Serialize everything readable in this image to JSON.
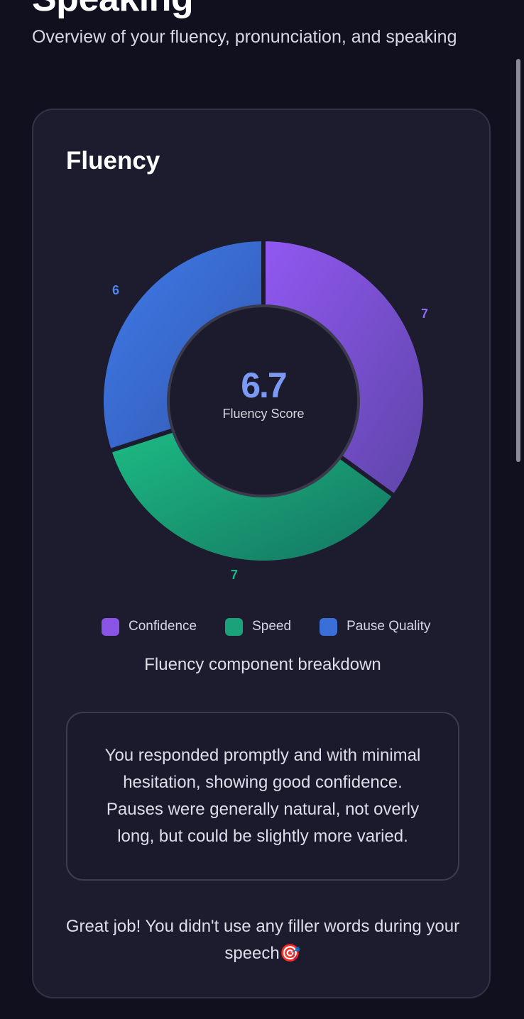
{
  "page": {
    "title": "Speaking",
    "subtitle": "Overview of your fluency, pronunciation, and speaking"
  },
  "card": {
    "title": "Fluency",
    "center_score": "6.7",
    "center_label": "Fluency Score",
    "labels": {
      "confidence": "7",
      "speed": "7",
      "pause_quality": "6"
    },
    "legend": [
      {
        "label": "Confidence",
        "color": "#8a55e6"
      },
      {
        "label": "Speed",
        "color": "#1aa37a"
      },
      {
        "label": "Pause Quality",
        "color": "#3b6fd8"
      }
    ],
    "caption": "Fluency component breakdown",
    "feedback": "You responded promptly and with minimal hesitation, showing good confidence. Pauses were generally natural, not overly long, but could be slightly more varied.",
    "filler_note": "Great job! You didn't use any filler words during your speech",
    "filler_emoji": "🎯"
  },
  "colors": {
    "background": "#11101f",
    "card": "#1d1c2e",
    "confidence": "#8a55e6",
    "speed": "#1aa37a",
    "pause_quality": "#3b6fd8",
    "score": "#7b9af5"
  },
  "chart_data": {
    "type": "pie",
    "variant": "doughnut",
    "title": "Fluency",
    "categories": [
      "Confidence",
      "Speed",
      "Pause Quality"
    ],
    "values": [
      7,
      7,
      6
    ],
    "colors": [
      "#8a55e6",
      "#1aa37a",
      "#3b6fd8"
    ],
    "center_text": "6.7",
    "center_subtext": "Fluency Score",
    "legend_position": "bottom",
    "caption": "Fluency component breakdown"
  }
}
